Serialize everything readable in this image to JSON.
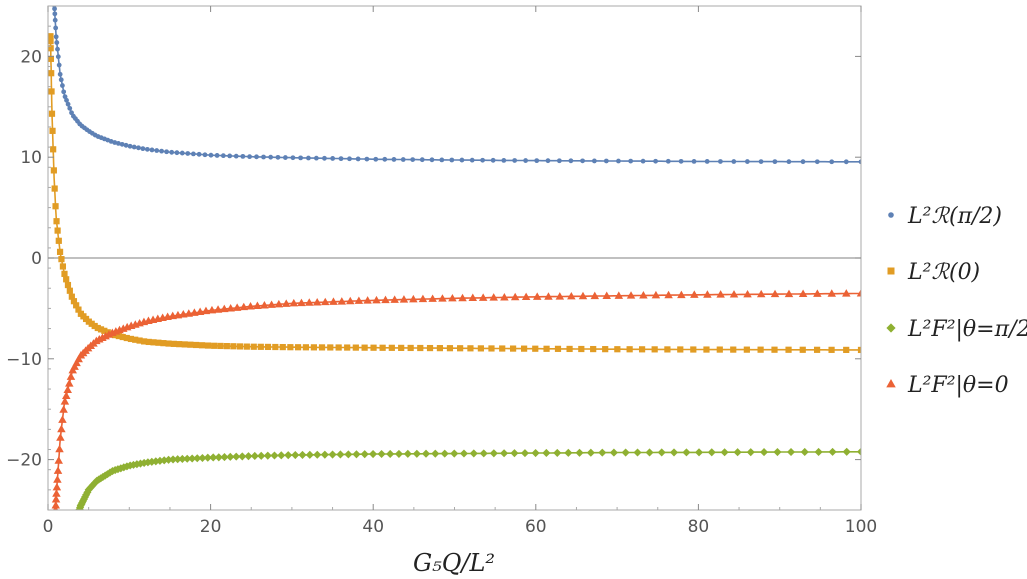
{
  "chart_data": {
    "type": "line",
    "xlabel": "G₅Q/L²",
    "ylabel": "",
    "xlim": [
      0,
      100
    ],
    "ylim": [
      -25,
      25
    ],
    "x_ticks": [
      0,
      20,
      40,
      60,
      80,
      100
    ],
    "y_ticks": [
      -20,
      -10,
      0,
      10,
      20
    ],
    "x_tick_labels": [
      "0",
      "20",
      "40",
      "60",
      "80",
      "100"
    ],
    "y_tick_labels": [
      "−20",
      "−10",
      "0",
      "10",
      "20"
    ],
    "grid": false,
    "zero_line": true,
    "legend_position": "right",
    "series": [
      {
        "name": "L²ℛ(π/2)",
        "color": "#5e81b5",
        "marker": "circle",
        "x": [
          0.75,
          1,
          1.5,
          2,
          3,
          4,
          5,
          6,
          8,
          10,
          12,
          15,
          20,
          25,
          30,
          40,
          50,
          60,
          70,
          80,
          90,
          95,
          100
        ],
        "y": [
          25.5,
          22.0,
          18.2,
          16.2,
          14.2,
          13.2,
          12.6,
          12.1,
          11.5,
          11.1,
          10.8,
          10.5,
          10.2,
          10.05,
          9.95,
          9.8,
          9.72,
          9.66,
          9.62,
          9.58,
          9.56,
          9.55,
          9.54
        ]
      },
      {
        "name": "L²ℛ(0)",
        "color": "#e19c24",
        "marker": "square",
        "x": [
          0.3,
          0.5,
          0.75,
          1,
          1.5,
          2,
          2.5,
          3,
          4,
          5,
          6,
          8,
          10,
          12,
          15,
          20,
          25,
          30,
          40,
          50,
          60,
          70,
          80,
          90,
          100
        ],
        "y": [
          22.0,
          14.0,
          8.0,
          4.0,
          0.5,
          -1.5,
          -2.8,
          -4.0,
          -5.5,
          -6.3,
          -6.9,
          -7.6,
          -8.0,
          -8.3,
          -8.5,
          -8.7,
          -8.8,
          -8.85,
          -8.9,
          -8.95,
          -9.0,
          -9.05,
          -9.08,
          -9.1,
          -9.12
        ]
      },
      {
        "name": "L²F²|θ=π/2",
        "color": "#8fb032",
        "marker": "diamond",
        "x": [
          3.7,
          4,
          5,
          6,
          8,
          10,
          12,
          15,
          20,
          25,
          30,
          40,
          50,
          60,
          70,
          80,
          90,
          95,
          100
        ],
        "y": [
          -25.5,
          -24.6,
          -23.0,
          -22.1,
          -21.1,
          -20.6,
          -20.3,
          -20.0,
          -19.8,
          -19.65,
          -19.55,
          -19.45,
          -19.4,
          -19.35,
          -19.3,
          -19.28,
          -19.25,
          -19.24,
          -19.22
        ]
      },
      {
        "name": "L²F²|θ=0",
        "color": "#eb6235",
        "marker": "triangle",
        "x": [
          0.9,
          1,
          1.5,
          2,
          3,
          4,
          5,
          6,
          8,
          10,
          12,
          15,
          20,
          25,
          30,
          40,
          50,
          60,
          70,
          80,
          90,
          95,
          100
        ],
        "y": [
          -25.5,
          -23.8,
          -18.0,
          -14.5,
          -11.2,
          -9.7,
          -8.9,
          -8.2,
          -7.4,
          -6.8,
          -6.3,
          -5.8,
          -5.2,
          -4.8,
          -4.5,
          -4.2,
          -4.0,
          -3.85,
          -3.75,
          -3.65,
          -3.58,
          -3.55,
          -3.52
        ]
      }
    ]
  }
}
